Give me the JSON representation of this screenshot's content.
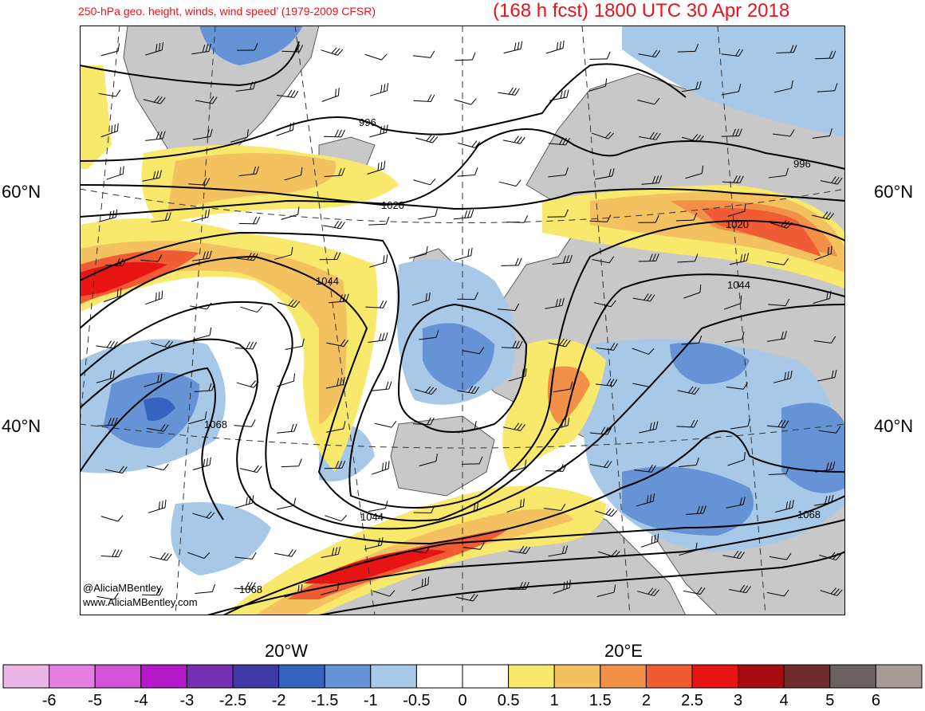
{
  "header": {
    "title_left": "250-hPa geo. height, winds, wind speed’ (1979-2009 CFSR)",
    "title_right": "(168 h fcst) 1800 UTC 30 Apr 2018"
  },
  "axes": {
    "lat_60_left": "60°N",
    "lat_60_right": "60°N",
    "lat_40_left": "40°N",
    "lat_40_right": "40°N",
    "lon_20w": "20°W",
    "lon_20e": "20°E"
  },
  "contour_labels": {
    "c996_a": "996",
    "c996_b": "996",
    "c1020_a": "1020",
    "c1020_b": "1020",
    "c1044_a": "1044",
    "c1044_b": "1044",
    "c1044_c": "1044",
    "c1068_a": "1068",
    "c1068_b": "1068",
    "c1068_c": "1068"
  },
  "credits": {
    "twitter": "@AliciaMBentley",
    "website": "www.AliciaMBentley.com"
  },
  "colorbar": {
    "labels": [
      "-6",
      "-5",
      "-4",
      "-3",
      "-2.5",
      "-2",
      "-1.5",
      "-1",
      "-0.5",
      "0",
      "0.5",
      "1",
      "1.5",
      "2",
      "2.5",
      "3",
      "4",
      "5",
      "6"
    ],
    "colors": [
      "#ebb5e8",
      "#e27fe0",
      "#d452d6",
      "#b319c7",
      "#7430b0",
      "#3f39a5",
      "#3564c0",
      "#6692d6",
      "#a7c8e6",
      "#ffffff",
      "#ffffff",
      "#f8e86b",
      "#f3c160",
      "#f29048",
      "#f05c34",
      "#e81414",
      "#a50b0f",
      "#6e2c2c",
      "#6a6161",
      "#a89b96"
    ]
  },
  "colors": {
    "land": "#c8c8c8",
    "coast": "#5a5a5a",
    "title": "#e8141b"
  }
}
